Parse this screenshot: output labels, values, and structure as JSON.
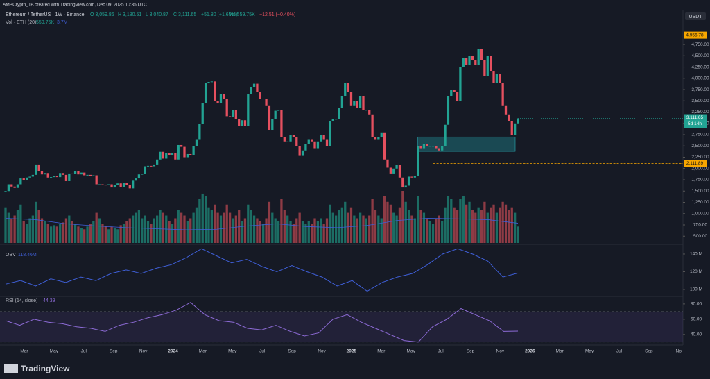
{
  "chart_data": {
    "type": "candlestick",
    "header": "AMBCrypto_TA created with TradingView.com, Dec 09, 2025 10:35 UTC",
    "symbol": "Ethereum / TetherUS · 1W · Binance",
    "ohlc_text": [
      "O 3,059.86",
      "H 3,180.51",
      "L 3,040.87",
      "C 3,111.65",
      "+51.80 (+1.69%)"
    ],
    "vol_text": [
      "Vol 559.75K",
      "−12.51 (−0.40%)"
    ],
    "vol_legend": [
      "Vol · ETH (20)",
      "559.75K",
      "3.7M"
    ],
    "currency": "USDT",
    "brand": "TradingView",
    "colors": {
      "up": "#22a393",
      "down": "#e5505f",
      "vol_up": "#1c6d64",
      "vol_down": "#8e3b45",
      "line": "#3f5fd8",
      "rsi": "#8d6bd6"
    },
    "close": [
      1500,
      1650,
      1600,
      1570,
      1650,
      1780,
      1750,
      1800,
      1820,
      1860,
      2090,
      1940,
      1870,
      1900,
      1800,
      1810,
      1830,
      1810,
      1900,
      1860,
      1720,
      1890,
      1880,
      1950,
      1870,
      1910,
      1850,
      1860,
      1830,
      1850,
      1650,
      1650,
      1640,
      1630,
      1650,
      1580,
      1630,
      1670,
      1590,
      1680,
      1640,
      1560,
      1730,
      1780,
      1870,
      1880,
      2050,
      2060,
      2050,
      2090,
      2200,
      2370,
      2220,
      2350,
      2300,
      2350,
      2200,
      2520,
      2480,
      2250,
      2320,
      2300,
      2500,
      2650,
      2990,
      3450,
      3890,
      3920,
      3930,
      3500,
      3450,
      3650,
      3550,
      3160,
      3150,
      3300,
      3100,
      2950,
      3070,
      2950,
      3650,
      3800,
      3880,
      3700,
      3550,
      3550,
      3400,
      2850,
      3100,
      3280,
      3300,
      2700,
      2600,
      2600,
      2750,
      2690,
      2500,
      2280,
      2400,
      2550,
      2650,
      2600,
      2450,
      2600,
      2750,
      2650,
      2500,
      3050,
      3100,
      3100,
      3350,
      3600,
      3900,
      3700,
      3400,
      3500,
      3350,
      3600,
      3300,
      3300,
      3200,
      2700,
      2650,
      2700,
      2800,
      2200,
      2020,
      1890,
      2000,
      2080,
      1800,
      1580,
      1620,
      1820,
      1800,
      1840,
      2500,
      2450,
      2550,
      2500,
      2500,
      2500,
      2450,
      2400,
      2500,
      2970,
      3600,
      3750,
      3700,
      3500,
      4250,
      4450,
      4300,
      4500,
      4400,
      4300,
      4650,
      4400,
      4050,
      4500,
      4150,
      3900,
      4100,
      3900,
      3400,
      3200,
      3050,
      2750,
      3000,
      3111.65
    ],
    "volume": [
      1300,
      1100,
      900,
      1000,
      1200,
      1400,
      800,
      700,
      900,
      1000,
      1500,
      1200,
      900,
      800,
      700,
      600,
      650,
      600,
      700,
      750,
      900,
      1000,
      800,
      700,
      600,
      550,
      500,
      600,
      700,
      800,
      1100,
      900,
      700,
      600,
      500,
      600,
      550,
      500,
      650,
      700,
      800,
      900,
      1000,
      1100,
      1200,
      900,
      1000,
      800,
      700,
      900,
      1000,
      1200,
      1100,
      1000,
      800,
      700,
      900,
      1200,
      1100,
      1000,
      800,
      900,
      1100,
      1300,
      1600,
      1800,
      1700,
      1300,
      1200,
      1400,
      1100,
      1000,
      1100,
      1400,
      1100,
      900,
      1000,
      1200,
      800,
      900,
      1400,
      1200,
      1000,
      900,
      800,
      700,
      900,
      1500,
      1100,
      900,
      800,
      1600,
      1200,
      1000,
      800,
      700,
      900,
      1100,
      800,
      700,
      800,
      700,
      900,
      800,
      900,
      700,
      900,
      1400,
      1100,
      1000,
      1200,
      1300,
      1500,
      1100,
      1300,
      1000,
      900,
      1100,
      1000,
      900,
      1000,
      1600,
      1200,
      1000,
      900,
      1700,
      1500,
      1400,
      1100,
      1000,
      1300,
      1900,
      1500,
      1200,
      1000,
      900,
      1700,
      1200,
      1100,
      900,
      800,
      700,
      900,
      1000,
      800,
      1300,
      1700,
      1600,
      1300,
      1200,
      1600,
      1700,
      1400,
      1500,
      1200,
      1100,
      1300,
      1200,
      1500,
      1100,
      1300,
      1400,
      1100,
      1300,
      1500,
      1400,
      1200,
      1300,
      1100,
      600
    ],
    "volume_ma": [
      900,
      850,
      700,
      620,
      560,
      520,
      480,
      500,
      620,
      700,
      600,
      560,
      640,
      820,
      900,
      880,
      850,
      720
    ],
    "ylim": [
      350,
      5120
    ],
    "yticks": [
      {
        "value": 500,
        "label": "500.00"
      },
      {
        "value": 750,
        "label": "750.00"
      },
      {
        "value": 1000,
        "label": "1,000.00"
      },
      {
        "value": 1250,
        "label": "1,250.00"
      },
      {
        "value": 1500,
        "label": "1,500.00"
      },
      {
        "value": 1750,
        "label": "1,750.00"
      },
      {
        "value": 2000,
        "label": "2,000.00"
      },
      {
        "value": 2250,
        "label": "2,250.00"
      },
      {
        "value": 2500,
        "label": "2,500.00"
      },
      {
        "value": 2750,
        "label": "2,750.00"
      },
      {
        "value": 3000,
        "label": "3,000.00"
      },
      {
        "value": 3250,
        "label": "3,250.00"
      },
      {
        "value": 3500,
        "label": "3,500.00"
      },
      {
        "value": 3750,
        "label": "3,750.00"
      },
      {
        "value": 4000,
        "label": "4,000.00"
      },
      {
        "value": 4250,
        "label": "4,250.00"
      },
      {
        "value": 4500,
        "label": "4,500.00"
      },
      {
        "value": 4750,
        "label": "4,750.00"
      }
    ],
    "high_line": {
      "value": 4956.78,
      "label": "4,956.78"
    },
    "low_line": {
      "value": 2111.89,
      "label": "2,111.89"
    },
    "last_price": {
      "value": 3111.65,
      "label": "3,111.65",
      "countdown": "5d 14h"
    },
    "zone": [
      2380,
      2700
    ],
    "x_labels": [
      "Mar",
      "May",
      "Jul",
      "Sep",
      "Nov",
      "2024",
      "Mar",
      "May",
      "Jul",
      "Sep",
      "Nov",
      "2025",
      "Mar",
      "May",
      "Jul",
      "Sep",
      "Nov",
      "2026",
      "Mar",
      "May",
      "Jul",
      "Sep",
      "No"
    ],
    "obv": {
      "title": "OBV",
      "last": "118.46M",
      "values": [
        106,
        110,
        104,
        112,
        108,
        114,
        110,
        118,
        122,
        118,
        124,
        128,
        136,
        146,
        138,
        130,
        134,
        126,
        120,
        127,
        120,
        114,
        104,
        110,
        98,
        108,
        114,
        118,
        128,
        140,
        146,
        140,
        132,
        114,
        118.46
      ],
      "ylim": [
        93.7,
        148.6
      ],
      "yticks": [
        {
          "value": 100,
          "label": "100 M"
        },
        {
          "value": 120,
          "label": "120 M"
        },
        {
          "value": 140,
          "label": "140 M"
        }
      ]
    },
    "rsi": {
      "title": "RSI (14, close)",
      "last": "44.39",
      "values": [
        58,
        52,
        60,
        56,
        54,
        50,
        48,
        44,
        52,
        56,
        62,
        66,
        72,
        82,
        66,
        58,
        56,
        48,
        46,
        52,
        44,
        38,
        42,
        60,
        66,
        56,
        48,
        40,
        32,
        30,
        50,
        60,
        74,
        66,
        58,
        44,
        44.39
      ],
      "band": [
        30,
        70
      ],
      "ylim": [
        28,
        89
      ],
      "yticks": [
        {
          "value": 40,
          "label": "40.00"
        },
        {
          "value": 60,
          "label": "60.00"
        },
        {
          "value": 80,
          "label": "80.00"
        }
      ]
    }
  }
}
